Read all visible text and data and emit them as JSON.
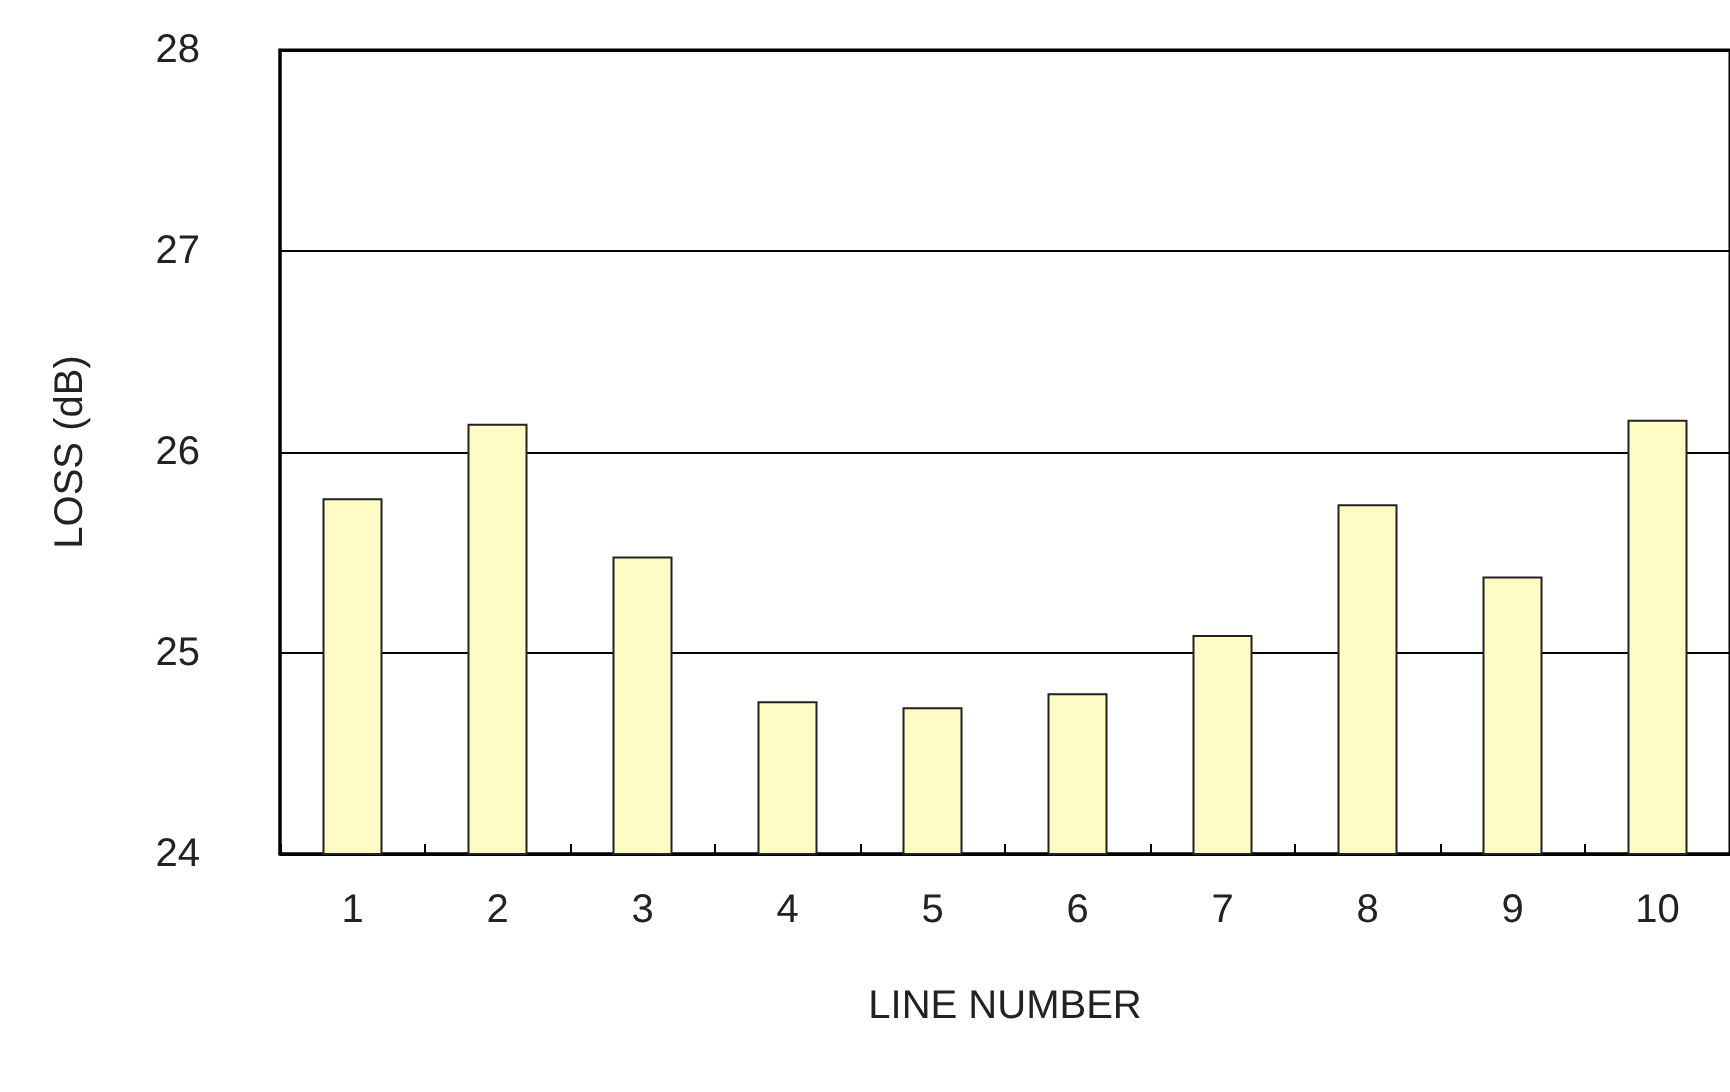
{
  "chart_data": {
    "type": "bar",
    "xlabel": "LINE NUMBER",
    "ylabel": "LOSS (dB)",
    "categories": [
      "1",
      "2",
      "3",
      "4",
      "5",
      "6",
      "7",
      "8",
      "9",
      "10"
    ],
    "values": [
      25.77,
      26.14,
      25.48,
      24.76,
      24.73,
      24.8,
      25.09,
      25.74,
      25.38,
      26.16
    ],
    "color": "#fffbc4",
    "ylim": [
      24,
      28
    ],
    "yticks": [
      24,
      25,
      26,
      27,
      28
    ],
    "grid": "y"
  }
}
